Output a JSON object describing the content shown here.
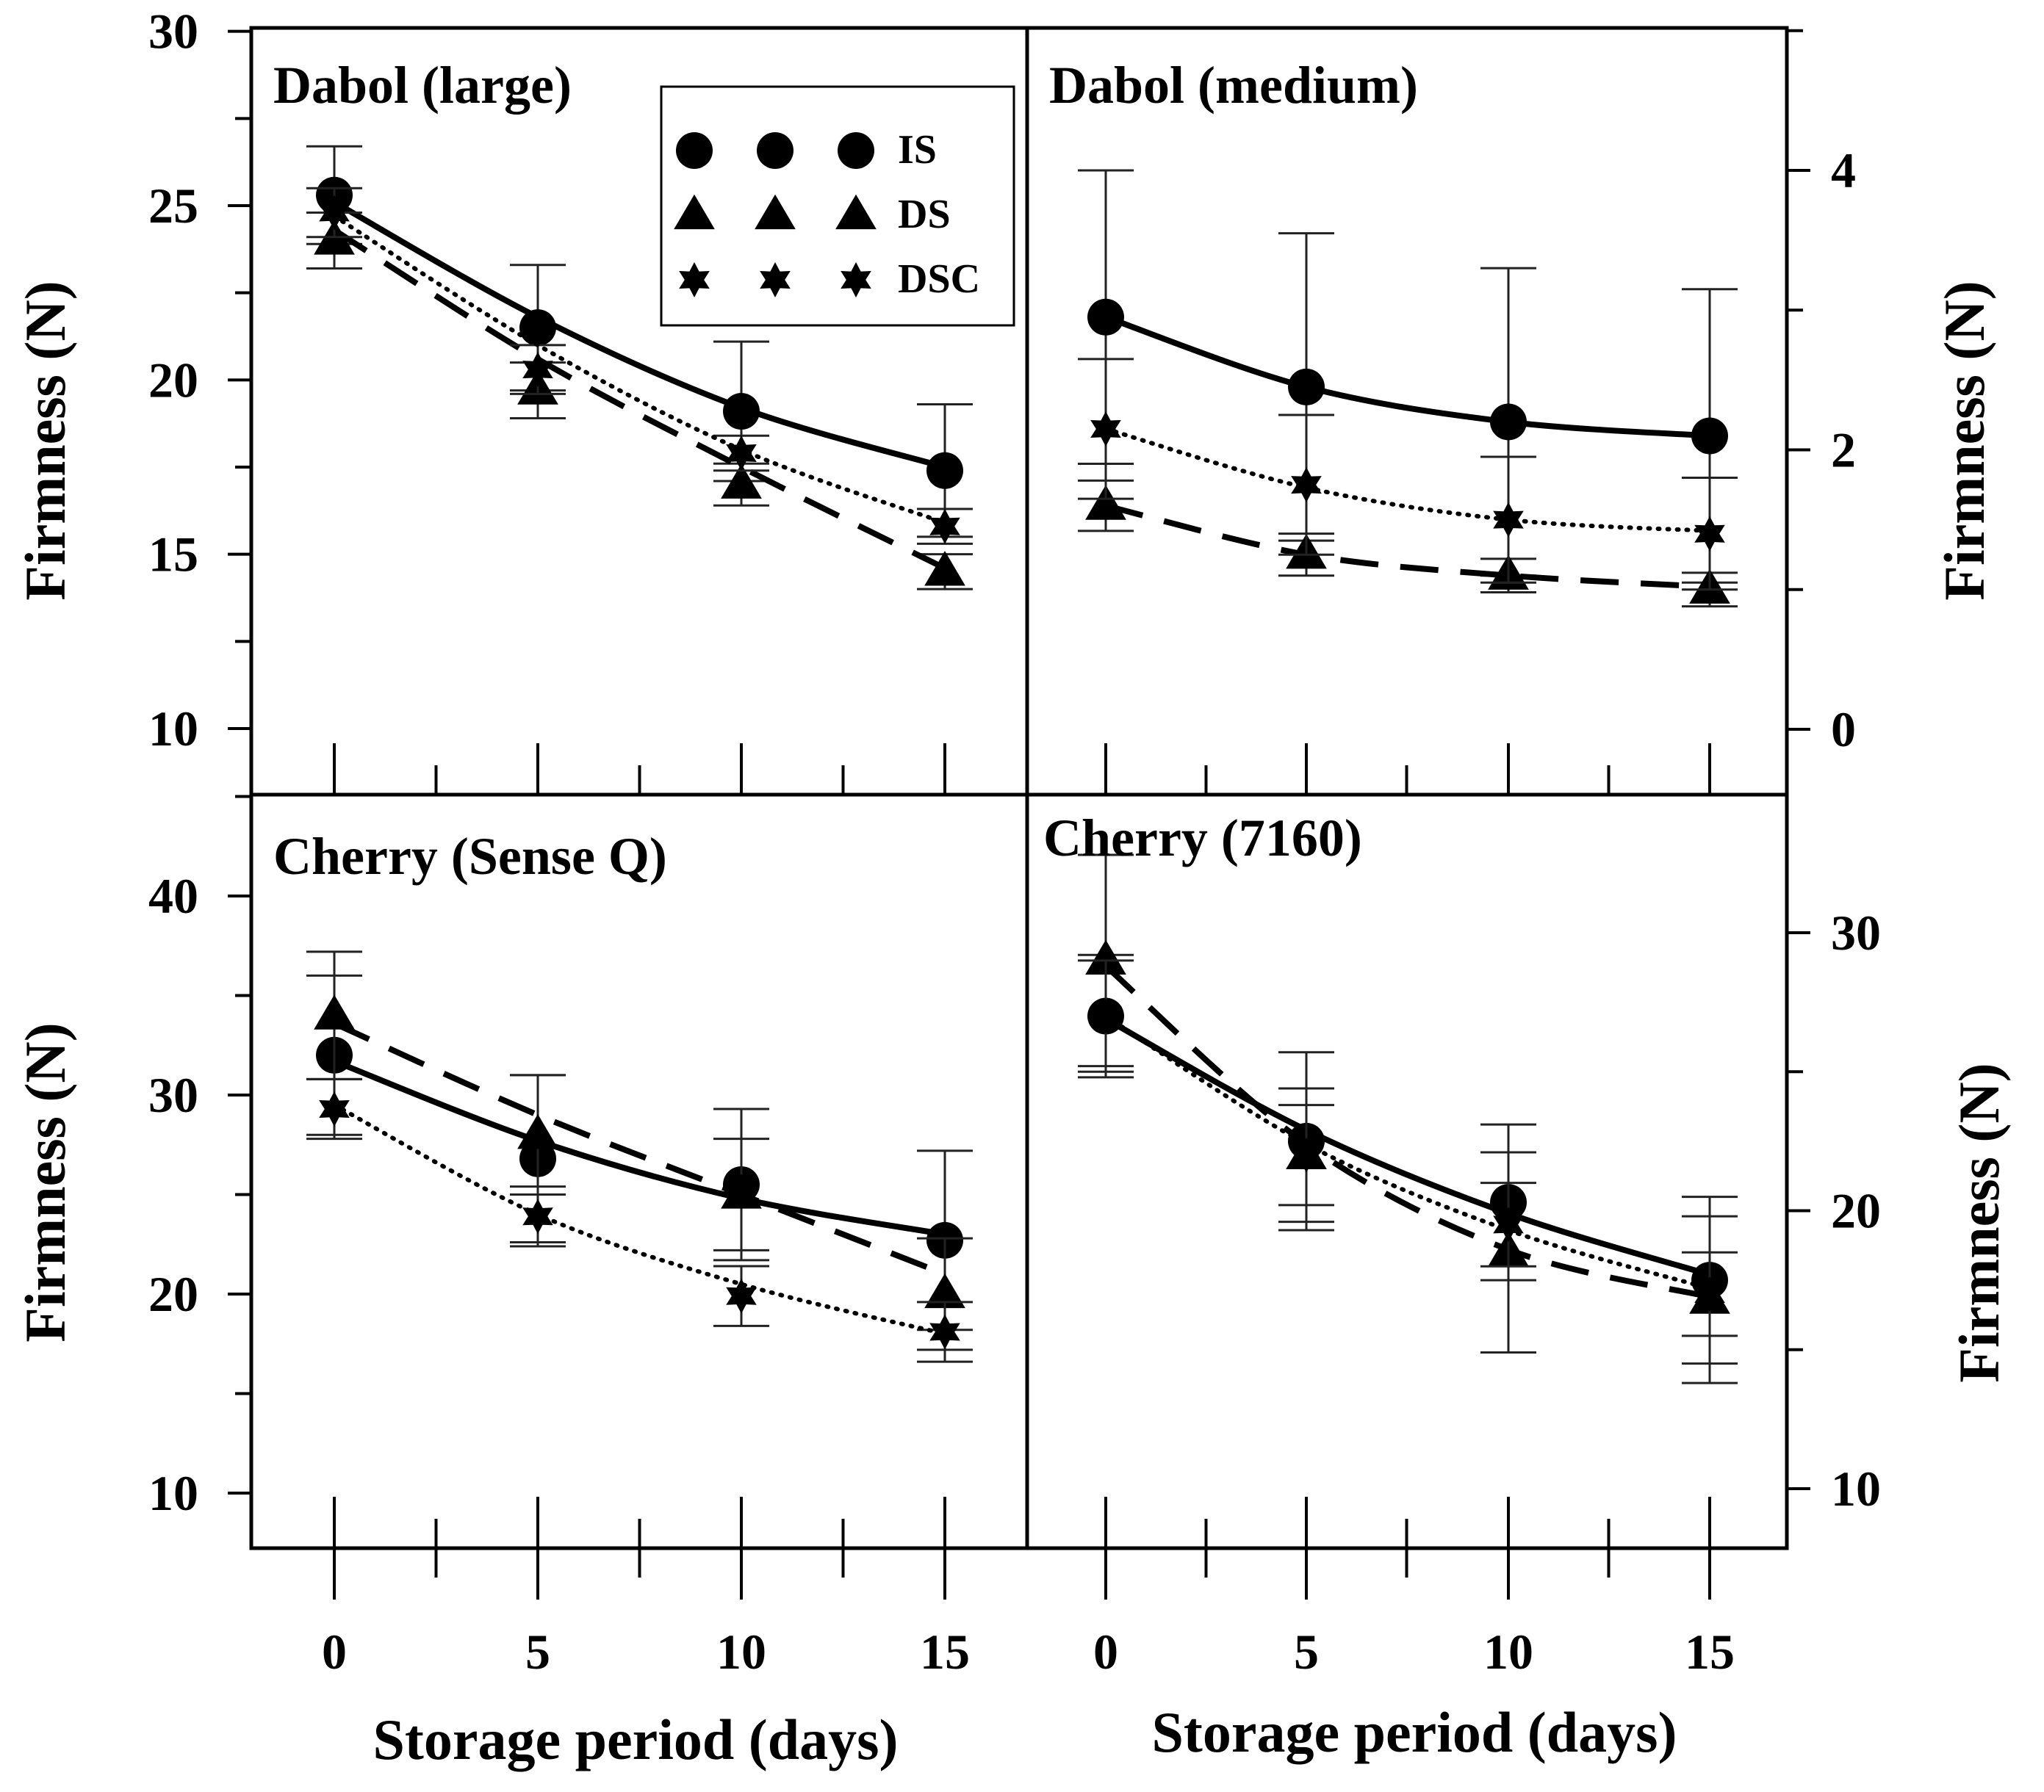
{
  "figure": {
    "y_axis_label": "Firmness (N)",
    "x_axis_label": "Storage period (days)",
    "x_ticks": [
      "0",
      "5",
      "10",
      "15"
    ]
  },
  "legend": {
    "entries": [
      {
        "label": "IS",
        "marker": "circle",
        "line": "solid"
      },
      {
        "label": "DS",
        "marker": "triangle",
        "line": "dashed"
      },
      {
        "label": "DSC",
        "marker": "star",
        "line": "dotted"
      }
    ],
    "border_color": "#000000"
  },
  "chart_data": [
    {
      "type": "line",
      "title": "Dabol (large)",
      "x": [
        0,
        5,
        10,
        15
      ],
      "xlabel": "",
      "ylabel": "Firmness (N)",
      "y_axis_side": "left",
      "ylim": [
        8,
        30
      ],
      "yticks": [
        10,
        15,
        20,
        25,
        30
      ],
      "grid": false,
      "series": [
        {
          "name": "IS",
          "marker": "circle",
          "values": [
            25.3,
            21.5,
            19.1,
            17.4
          ],
          "err": [
            1.4,
            1.8,
            2.0,
            1.9
          ],
          "fit": [
            25.1,
            21.8,
            19.2,
            17.5
          ]
        },
        {
          "name": "DS",
          "marker": "triangle",
          "values": [
            24.0,
            19.7,
            17.0,
            14.5
          ],
          "err": [
            0.8,
            0.8,
            0.6,
            0.5
          ],
          "fit": [
            24.3,
            20.6,
            17.5,
            14.6
          ]
        },
        {
          "name": "DSC",
          "marker": "star",
          "values": [
            24.8,
            20.3,
            17.9,
            15.8
          ],
          "err": [
            0.7,
            0.7,
            0.5,
            0.5
          ],
          "fit": [
            24.7,
            21.0,
            18.0,
            15.9
          ]
        }
      ]
    },
    {
      "type": "line",
      "title": "Dabol (medium)",
      "x": [
        0,
        5,
        10,
        15
      ],
      "xlabel": "",
      "ylabel": "Firmness (N)",
      "y_axis_side": "right",
      "ylim": [
        -0.5,
        5
      ],
      "yticks": [
        0,
        2,
        4
      ],
      "grid": false,
      "series": [
        {
          "name": "IS",
          "marker": "circle",
          "values": [
            2.95,
            2.45,
            2.2,
            2.1
          ],
          "err": [
            1.05,
            1.1,
            1.1,
            1.05
          ],
          "fit": [
            2.95,
            2.45,
            2.2,
            2.1
          ]
        },
        {
          "name": "DS",
          "marker": "triangle",
          "values": [
            1.6,
            1.25,
            1.1,
            1.0
          ],
          "err": [
            0.18,
            0.15,
            0.12,
            0.12
          ],
          "fit": [
            1.6,
            1.25,
            1.1,
            1.02
          ]
        },
        {
          "name": "DSC",
          "marker": "star",
          "values": [
            2.15,
            1.75,
            1.5,
            1.4
          ],
          "err": [
            0.5,
            0.5,
            0.45,
            0.4
          ],
          "fit": [
            2.15,
            1.73,
            1.5,
            1.42
          ]
        }
      ]
    },
    {
      "type": "line",
      "title": "Cherry (Sense Q)",
      "x": [
        0,
        5,
        10,
        15
      ],
      "xlabel": "Storage period (days)",
      "ylabel": "Firmness (N)",
      "y_axis_side": "left",
      "ylim": [
        7,
        40
      ],
      "yticks": [
        10,
        20,
        30,
        40
      ],
      "grid": false,
      "series": [
        {
          "name": "IS",
          "marker": "circle",
          "values": [
            32.0,
            26.8,
            25.5,
            22.7
          ],
          "err": [
            4.0,
            4.2,
            3.8,
            4.5
          ],
          "fit": [
            31.7,
            27.7,
            24.8,
            23.0
          ]
        },
        {
          "name": "DS",
          "marker": "triangle",
          "values": [
            34.0,
            28.0,
            25.0,
            20.0
          ],
          "err": [
            3.2,
            3.0,
            2.8,
            2.8
          ],
          "fit": [
            33.6,
            29.0,
            25.0,
            21.0
          ]
        },
        {
          "name": "DSC",
          "marker": "star",
          "values": [
            29.3,
            23.9,
            19.9,
            18.1
          ],
          "err": [
            1.5,
            1.5,
            1.5,
            1.5
          ],
          "fit": [
            29.5,
            24.0,
            20.5,
            18.0
          ]
        }
      ]
    },
    {
      "type": "line",
      "title": "Cherry (7160)",
      "x": [
        0,
        5,
        10,
        15
      ],
      "xlabel": "Storage period (days)",
      "ylabel": "Firmness (N)",
      "y_axis_side": "right",
      "ylim": [
        8,
        35
      ],
      "yticks": [
        10,
        20,
        30
      ],
      "grid": false,
      "series": [
        {
          "name": "IS",
          "marker": "circle",
          "values": [
            27.0,
            22.5,
            20.3,
            17.5
          ],
          "err": [
            2.2,
            3.2,
            2.8,
            3.0
          ],
          "fit": [
            26.9,
            22.9,
            19.9,
            17.7
          ]
        },
        {
          "name": "DS",
          "marker": "triangle",
          "values": [
            29.0,
            22.0,
            18.5,
            16.8
          ],
          "err": [
            3.8,
            2.4,
            3.6,
            3.0
          ],
          "fit": [
            28.8,
            22.4,
            18.6,
            16.9
          ]
        },
        {
          "name": "DSC",
          "marker": "star",
          "values": [
            27.0,
            22.0,
            19.5,
            17.0
          ],
          "err": [
            2.0,
            1.8,
            1.5,
            1.5
          ],
          "fit": [
            27.0,
            22.4,
            19.3,
            17.2
          ]
        }
      ]
    }
  ]
}
